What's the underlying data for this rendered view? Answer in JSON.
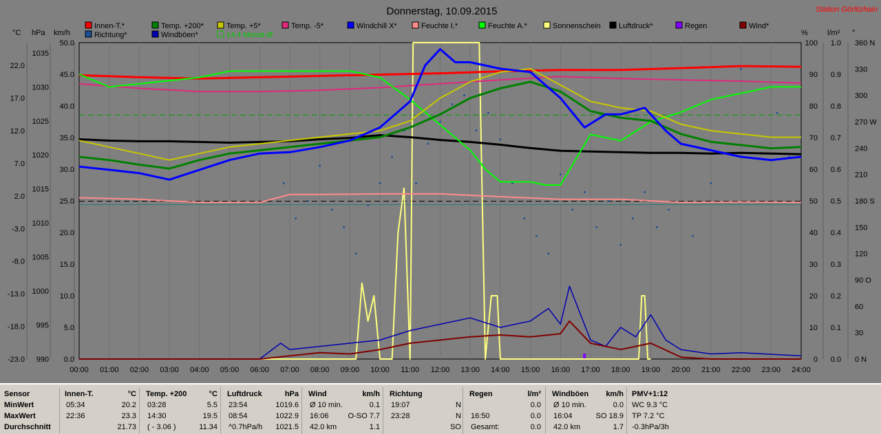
{
  "chart_data": {
    "type": "line",
    "title": "Donnerstag, 10.09.2015",
    "station": "Station Görlitzhain",
    "x_ticks": [
      "00:00",
      "01:00",
      "02:00",
      "03:00",
      "04:00",
      "05:00",
      "06:00",
      "07:00",
      "08:00",
      "09:00",
      "10:00",
      "11:00",
      "12:00",
      "13:00",
      "14:00",
      "15:00",
      "16:00",
      "17:00",
      "18:00",
      "19:00",
      "20:00",
      "21:00",
      "22:00",
      "23:00",
      "24:00"
    ],
    "axes": {
      "temp_c": {
        "unit": "°C",
        "ticks": [
          "22.0",
          "17.0",
          "12.0",
          "7.0",
          "2.0",
          "-3.0",
          "-8.0",
          "-13.0",
          "-18.0",
          "-23.0"
        ],
        "range": [
          -23,
          25.5
        ]
      },
      "pressure_hpa": {
        "unit": "hPa",
        "ticks": [
          "1035",
          "1030",
          "1025",
          "1020",
          "1015",
          "1010",
          "1005",
          "1000",
          "995",
          "990"
        ],
        "range": [
          990,
          1036.5
        ]
      },
      "wind_kmh": {
        "unit": "km/h",
        "ticks": [
          "50.0",
          "45.0",
          "40.0",
          "35.0",
          "30.0",
          "25.0",
          "20.0",
          "15.0",
          "10.0",
          "5.0",
          "0.0"
        ],
        "range": [
          0,
          50
        ]
      },
      "humidity_pct": {
        "unit": "%",
        "ticks": [
          "100",
          "90",
          "80",
          "70",
          "60",
          "50",
          "40",
          "30",
          "20",
          "10",
          "0"
        ],
        "range": [
          0,
          100
        ]
      },
      "rain_lm2": {
        "unit": "l/m²",
        "ticks": [
          "1.0",
          "0.9",
          "0.8",
          "0.7",
          "0.6",
          "0.5",
          "0.4",
          "0.3",
          "0.2",
          "0.1",
          "0.0"
        ],
        "range": [
          0,
          1
        ]
      },
      "direction_deg": {
        "unit": "°",
        "ticks": [
          "360 N",
          "330",
          "300",
          "270 W",
          "240",
          "210",
          "180 S",
          "150",
          "120",
          "90 O",
          "60",
          "30",
          "0 N"
        ],
        "range": [
          0,
          360
        ]
      }
    },
    "legend": [
      {
        "name": "Innen-T.*",
        "color": "#ff0000"
      },
      {
        "name": "Temp. +200*",
        "color": "#008000"
      },
      {
        "name": "Temp. +5*",
        "color": "#c8c800"
      },
      {
        "name": "Temp. -5*",
        "color": "#e0287c"
      },
      {
        "name": "Windchill X*",
        "color": "#0000ff"
      },
      {
        "name": "Feuchte I.*",
        "color": "#ff8c8c"
      },
      {
        "name": "Feuchte A.*",
        "color": "#00ff00"
      },
      {
        "name": "Sonnenschein",
        "color": "#ffff80"
      },
      {
        "name": "Luftdruck*",
        "color": "#000000"
      },
      {
        "name": "Regen",
        "color": "#8000ff"
      },
      {
        "name": "Wind*",
        "color": "#800000"
      },
      {
        "name": "Richtung*",
        "color": "#1a4f96"
      },
      {
        "name": "Windböen*",
        "color": "#0000b0"
      },
      {
        "name": "14.4 Monat-Ø",
        "color": "#00cc00"
      }
    ],
    "series": [
      {
        "name": "Innen-T.*",
        "axis": "temp_c",
        "x": [
          0,
          2,
          4,
          6,
          8,
          10,
          12,
          14,
          16,
          18,
          20,
          22,
          24
        ],
        "values": [
          20.5,
          20.2,
          20.0,
          20.2,
          20.4,
          20.6,
          20.8,
          21.1,
          21.3,
          21.3,
          21.6,
          21.9,
          21.8
        ]
      },
      {
        "name": "Temp. +200*",
        "axis": "temp_c",
        "x": [
          0,
          1,
          2,
          3,
          4,
          5,
          6,
          7,
          8,
          9,
          10,
          11,
          12,
          13,
          14,
          15,
          16,
          17,
          18,
          19,
          20,
          21,
          22,
          23,
          24
        ],
        "values": [
          8.0,
          7.5,
          6.8,
          6.2,
          7.5,
          8.5,
          9.0,
          9.5,
          10.0,
          10.5,
          11.0,
          12.5,
          14.5,
          17.0,
          18.5,
          19.5,
          18.0,
          15.0,
          14.0,
          13.5,
          11.5,
          10.3,
          9.8,
          9.3,
          9.5
        ]
      },
      {
        "name": "Temp. +5*",
        "axis": "temp_c",
        "x": [
          0,
          1,
          2,
          3,
          4,
          5,
          6,
          7,
          8,
          9,
          10,
          11,
          12,
          13,
          14,
          15,
          16,
          17,
          18,
          19,
          20,
          21,
          22,
          23,
          24
        ],
        "values": [
          10.5,
          9.5,
          8.5,
          7.5,
          8.5,
          9.5,
          10.0,
          10.5,
          11.0,
          11.5,
          12.0,
          13.5,
          17.0,
          19.5,
          21.0,
          21.5,
          19.0,
          16.5,
          15.5,
          15.0,
          13.0,
          12.0,
          11.5,
          11.0,
          11.0
        ]
      },
      {
        "name": "Temp. -5*",
        "axis": "temp_c",
        "x": [
          0,
          2,
          4,
          6,
          8,
          10,
          12,
          14,
          16,
          18,
          20,
          22,
          24
        ],
        "values": [
          19.2,
          18.5,
          18.0,
          18.0,
          18.2,
          18.6,
          19.2,
          19.8,
          20.3,
          20.0,
          19.8,
          19.6,
          19.3
        ]
      },
      {
        "name": "Windchill X*",
        "axis": "temp_c",
        "x": [
          0,
          1,
          2,
          3,
          4,
          5,
          6,
          7,
          8,
          9,
          10,
          11,
          11.5,
          12,
          12.5,
          13,
          14,
          15,
          16,
          16.8,
          17.5,
          18,
          18.8,
          19.5,
          20,
          21,
          22,
          23,
          24
        ],
        "values": [
          6.5,
          6.0,
          5.5,
          4.5,
          6.0,
          7.5,
          8.5,
          8.7,
          9.5,
          10.5,
          12.5,
          16.5,
          22.0,
          24.5,
          22.5,
          22.5,
          21.5,
          21.0,
          17.0,
          12.5,
          14.5,
          14.5,
          15.5,
          12.0,
          10.0,
          9.0,
          8.0,
          7.5,
          8.0
        ]
      },
      {
        "name": "Feuchte I.*",
        "axis": "humidity_pct",
        "x": [
          0,
          2,
          4,
          6,
          7,
          8,
          10,
          12,
          14,
          16,
          18,
          20,
          22,
          24
        ],
        "values": [
          51,
          50.5,
          49.5,
          49.5,
          52,
          52,
          52.2,
          52.2,
          51.3,
          50.5,
          50.5,
          49.5,
          49.6,
          49.5
        ]
      },
      {
        "name": "Feuchte A.*",
        "axis": "humidity_pct",
        "x": [
          0,
          1,
          2,
          3,
          4,
          5,
          6,
          7,
          8,
          9,
          10,
          11,
          12,
          13,
          13.5,
          14,
          15,
          15.5,
          16,
          17,
          18,
          19,
          20,
          21,
          22,
          23,
          24
        ],
        "values": [
          90,
          86,
          87,
          88,
          89,
          91,
          91,
          91,
          91,
          91,
          89,
          82,
          74,
          66,
          60,
          56,
          56,
          55,
          55,
          71,
          69,
          75,
          78,
          82,
          84,
          86,
          86
        ]
      },
      {
        "name": "Sonnenschein",
        "axis": "wind_kmh",
        "x": [
          0,
          9.2,
          9.4,
          9.6,
          9.8,
          10,
          10.4,
          10.6,
          10.8,
          11,
          11.1,
          13.3,
          13.5,
          13.7,
          13.9,
          14,
          14.5,
          14.6,
          18.6,
          18.7,
          18.8,
          18.9,
          19
        ],
        "values": [
          0,
          0,
          12,
          6,
          10,
          0,
          0,
          20,
          27,
          0,
          50,
          50,
          0,
          10,
          10,
          0,
          0,
          0,
          0,
          10,
          10,
          0,
          0
        ]
      },
      {
        "name": "Luftdruck*",
        "axis": "pressure_hpa",
        "x": [
          0,
          1,
          2,
          3,
          4,
          5,
          6,
          7,
          8,
          9,
          10,
          11,
          12,
          13,
          14,
          15,
          16,
          17,
          18,
          19,
          20,
          21,
          22,
          23,
          24
        ],
        "values": [
          1022.3,
          1022.1,
          1022.0,
          1022.0,
          1021.9,
          1021.8,
          1021.9,
          1022.0,
          1022.3,
          1022.5,
          1022.9,
          1022.6,
          1022.2,
          1021.9,
          1021.5,
          1021.0,
          1020.6,
          1020.5,
          1020.4,
          1020.3,
          1020.3,
          1020.2,
          1020.3,
          1020.2,
          1020.1
        ]
      },
      {
        "name": "Wind*",
        "axis": "wind_kmh",
        "x": [
          0,
          6,
          7,
          8,
          9,
          10,
          11,
          12,
          13,
          14,
          15,
          16,
          16.3,
          17,
          18,
          19,
          20,
          21,
          24
        ],
        "values": [
          0,
          0,
          0.5,
          1.0,
          0.8,
          1.5,
          2.5,
          3.0,
          3.5,
          3.8,
          3.5,
          4.0,
          6.0,
          2.5,
          1.5,
          2.5,
          0.3,
          0,
          0
        ]
      },
      {
        "name": "Windböen*",
        "axis": "wind_kmh",
        "x": [
          0,
          6,
          6.7,
          7,
          8,
          9,
          10,
          11,
          12,
          13,
          14,
          15,
          15.6,
          16,
          16.3,
          17,
          17.5,
          18,
          18.5,
          19,
          19.5,
          20,
          21,
          22,
          24
        ],
        "values": [
          0,
          0,
          2.5,
          1.5,
          2.0,
          2.5,
          3.0,
          4.5,
          5.5,
          6.5,
          5.0,
          6.0,
          8.0,
          5.5,
          11.5,
          3.0,
          2.0,
          5.0,
          3.5,
          7.0,
          3.0,
          1.5,
          0.8,
          1.0,
          0.5
        ]
      }
    ],
    "reference_lines": [
      {
        "axis": "temp_c",
        "value": 14.4,
        "label": "14.4 Monat-Ø"
      },
      {
        "axis": "pressure_hpa",
        "value": 1013.2
      }
    ],
    "direction_points": {
      "axis": "direction_deg",
      "x": [
        6.8,
        7.2,
        7.6,
        8.0,
        8.4,
        8.8,
        9.2,
        9.6,
        10.0,
        10.4,
        10.8,
        11.2,
        11.6,
        12.0,
        12.4,
        12.8,
        13.2,
        13.6,
        14.0,
        14.4,
        14.8,
        15.2,
        15.6,
        16.0,
        16.4,
        16.8,
        17.2,
        17.6,
        18.0,
        18.4,
        18.8,
        19.2,
        19.6,
        20.4,
        21.0,
        22.0,
        23.2,
        23.6
      ],
      "values": [
        200,
        160,
        180,
        220,
        170,
        150,
        120,
        175,
        200,
        230,
        260,
        200,
        245,
        270,
        290,
        300,
        260,
        280,
        250,
        200,
        160,
        140,
        120,
        210,
        170,
        190,
        150,
        180,
        130,
        160,
        190,
        150,
        170,
        140,
        200,
        330,
        280,
        230
      ]
    },
    "rain_points": {
      "axis": "rain_lm2",
      "x": [
        16.8
      ],
      "values": [
        0.02
      ]
    }
  },
  "stats": {
    "sensor": {
      "title": "Sensor",
      "rows": [
        "MinWert",
        "MaxWert",
        "Durchschnitt"
      ]
    },
    "innen": {
      "title": "Innen-T.",
      "unit": "°C",
      "c1": [
        "05:34",
        "22:36",
        ""
      ],
      "c2": [
        "20.2",
        "23.3",
        "21.73"
      ]
    },
    "temp": {
      "title": "Temp. +200",
      "unit": "°C",
      "c1": [
        "03:28",
        "14:30",
        "( - 3.06 )"
      ],
      "c2": [
        "5.5",
        "19.5",
        "11.34"
      ]
    },
    "luft": {
      "title": "Luftdruck",
      "unit": "hPa",
      "c1": [
        "23:54",
        "08:54",
        "^0.7hPa/h"
      ],
      "c2": [
        "1019.6",
        "1022.9",
        "1021.5"
      ]
    },
    "wind": {
      "title": "Wind",
      "unit": "km/h",
      "c1": [
        "Ø 10 min.",
        "16:06",
        "42.0 km"
      ],
      "c2": [
        "0.1",
        "O-SO 7.7",
        "1.1"
      ]
    },
    "richtung": {
      "title": "Richtung",
      "unit": "",
      "c1": [
        "19:07",
        "23:28",
        ""
      ],
      "c2": [
        "N",
        "N",
        "SO"
      ]
    },
    "regen": {
      "title": "Regen",
      "unit": "l/m²",
      "c1": [
        "",
        "16:50",
        "Gesamt:"
      ],
      "c2": [
        "0.0",
        "0.0",
        "0.0"
      ]
    },
    "boen": {
      "title": "Windböen",
      "unit": "km/h",
      "c1": [
        "Ø 10 min.",
        "16:04",
        "42.0 km"
      ],
      "c2": [
        "0.0",
        "SO 18.9",
        "1.7"
      ]
    },
    "pmv": {
      "title": "PMV+1:12",
      "rows": [
        "WC 9.3 °C",
        "TP 7.2 °C",
        "-0.3hPa/3h"
      ]
    }
  }
}
